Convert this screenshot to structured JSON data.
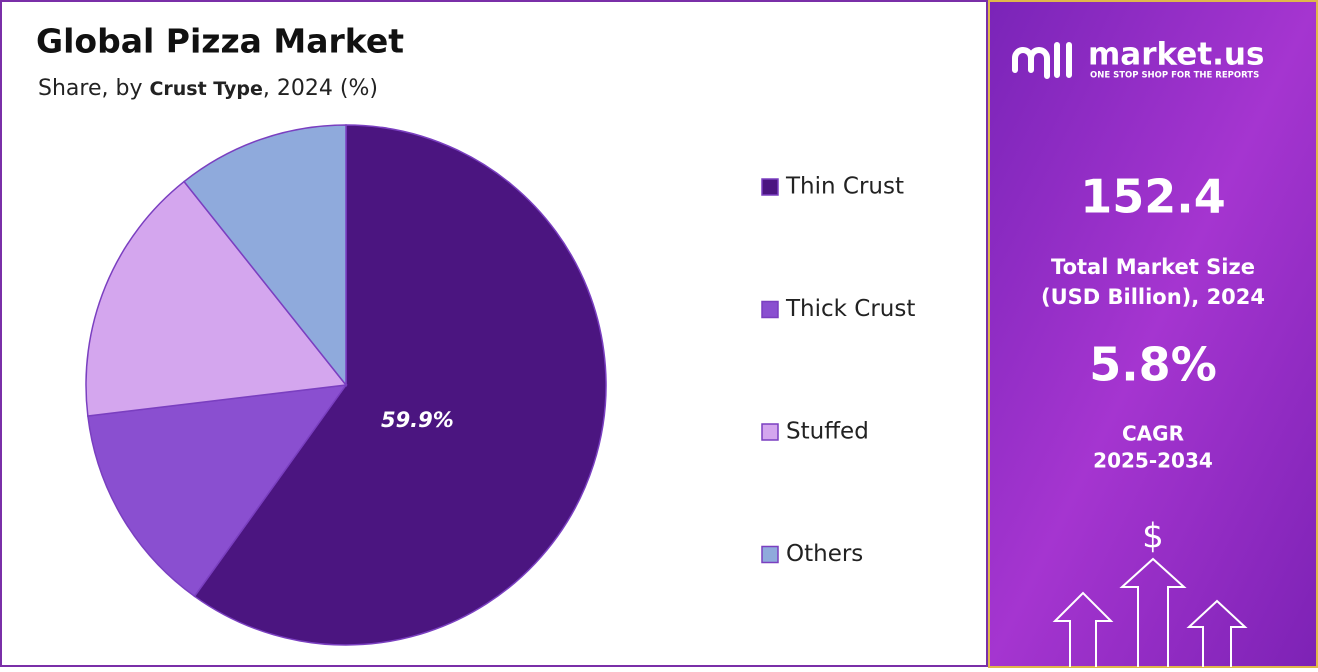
{
  "chart_data": {
    "type": "pie",
    "title": "Global Pizza Market",
    "subtitle": [
      "Share, by ",
      "Crust Type",
      ", 2024 (%)"
    ],
    "categories": [
      "Thin Crust",
      "Thick Crust",
      "Stuffed",
      "Others"
    ],
    "values": [
      59.9,
      13.2,
      16.2,
      10.7
    ],
    "value_labels": [
      "59.9%",
      null,
      null,
      null
    ],
    "colors": [
      "#4b1580",
      "#8a4fd0",
      "#d4a6ee",
      "#8faadc"
    ],
    "legend": "right"
  },
  "panel": {
    "brand": "market.us",
    "tagline": "ONE STOP SHOP FOR THE REPORTS",
    "market_size": "152.4",
    "market_size_label": [
      "Total Market Size",
      "(USD Billion), 2024"
    ],
    "cagr": "5.8%",
    "cagr_label": [
      "CAGR",
      "2025-2034"
    ],
    "currency": "$"
  }
}
